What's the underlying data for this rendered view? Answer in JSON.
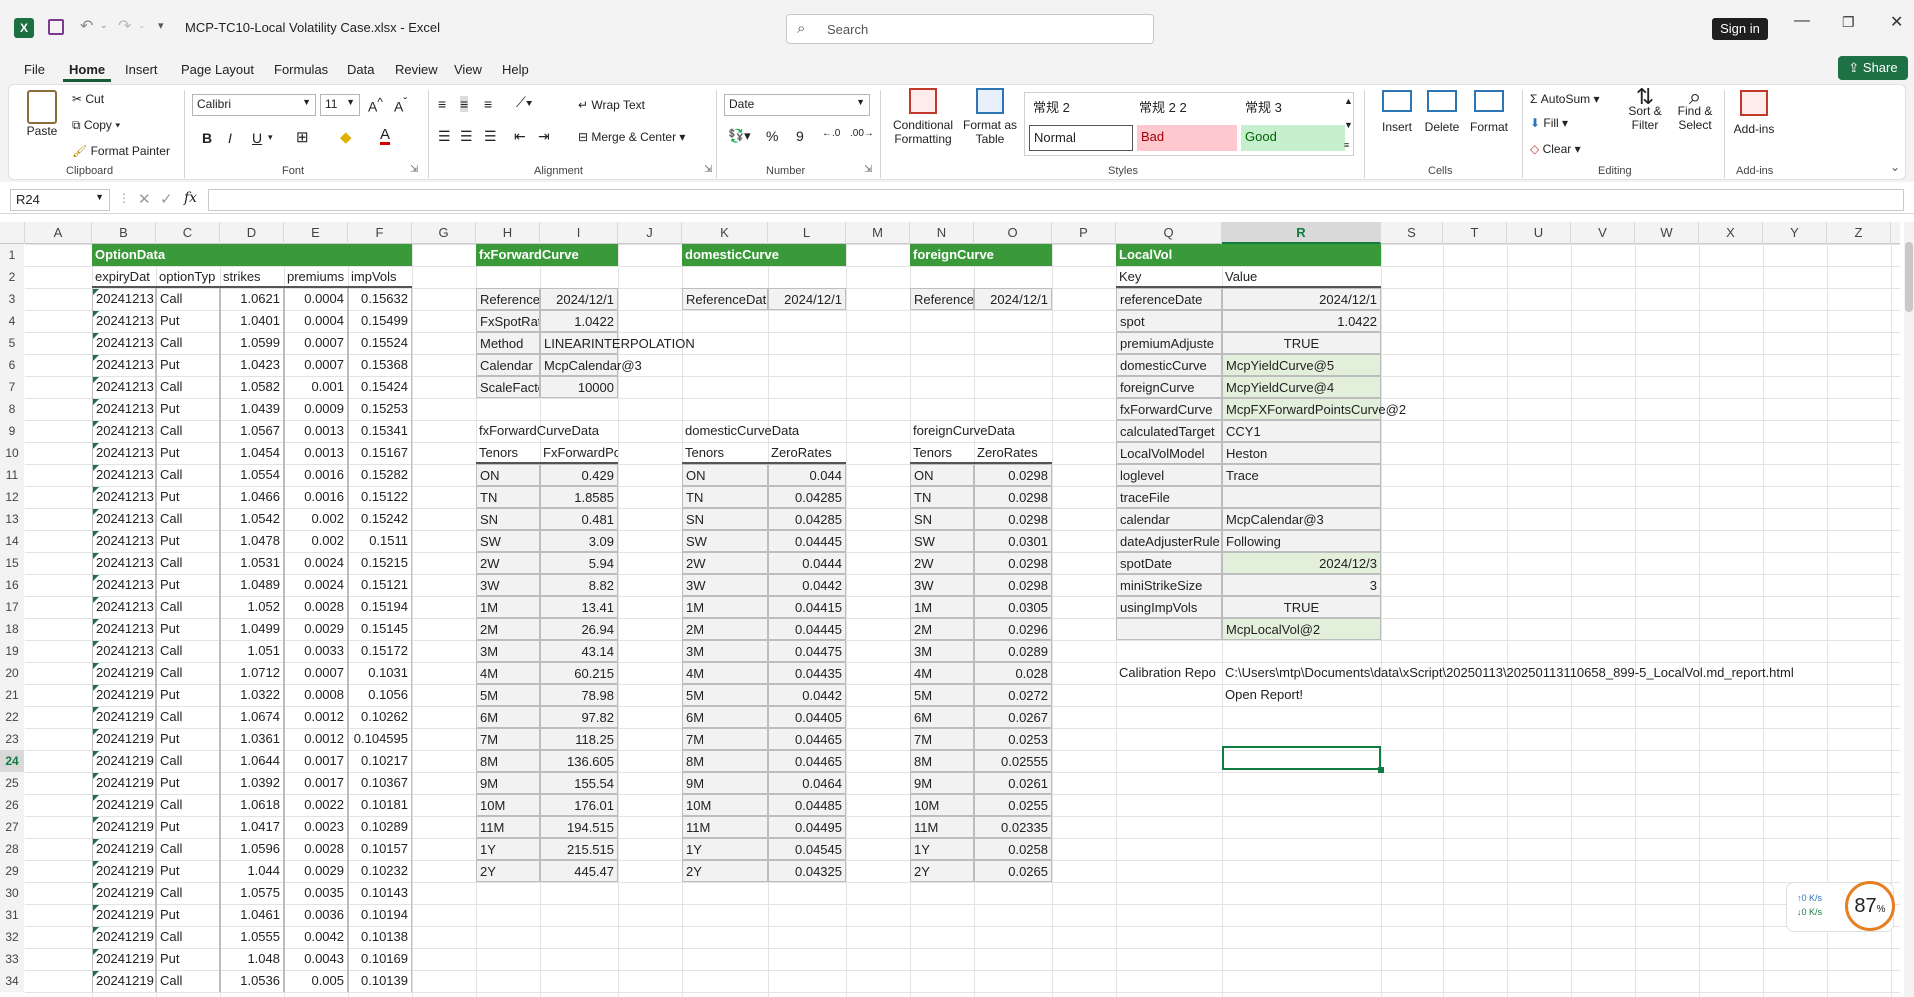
{
  "window": {
    "title": "MCP-TC10-Local Volatility Case.xlsx  -  Excel",
    "search_placeholder": "Search",
    "sign_in": "Sign in",
    "share": "Share",
    "accent": "#185c37"
  },
  "menu": {
    "tabs": [
      "File",
      "Home",
      "Insert",
      "Page Layout",
      "Formulas",
      "Data",
      "Review",
      "View",
      "Help"
    ]
  },
  "ribbon": {
    "clipboard": {
      "paste": "Paste",
      "cut": "Cut",
      "copy": "Copy",
      "format_painter": "Format Painter",
      "label": "Clipboard"
    },
    "font": {
      "name": "Calibri",
      "size": "11",
      "label": "Font"
    },
    "alignment": {
      "wrap": "Wrap Text",
      "merge": "Merge & Center",
      "label": "Alignment"
    },
    "number": {
      "format": "Date",
      "label": "Number"
    },
    "styles": {
      "conditional": "Conditional Formatting",
      "format_table": "Format as Table",
      "style1": "常规 2",
      "style2": "常规 2 2",
      "style3": "常规 3",
      "normal": "Normal",
      "bad": "Bad",
      "good": "Good",
      "label": "Styles"
    },
    "cells": {
      "insert": "Insert",
      "delete": "Delete",
      "format": "Format",
      "label": "Cells"
    },
    "editing": {
      "autosum": "AutoSum",
      "fill": "Fill",
      "clear": "Clear",
      "sort": "Sort & Filter",
      "find": "Find & Select",
      "label": "Editing"
    },
    "addins": {
      "addins": "Add-ins",
      "label": "Add-ins"
    }
  },
  "formula_bar": {
    "name_box": "R24",
    "fx": "fx",
    "value": ""
  },
  "columns": [
    "A",
    "B",
    "C",
    "D",
    "E",
    "F",
    "G",
    "H",
    "I",
    "J",
    "K",
    "L",
    "M",
    "N",
    "O",
    "P",
    "Q",
    "R",
    "S",
    "T",
    "U",
    "V",
    "W",
    "X",
    "Y",
    "Z"
  ],
  "option_data": {
    "title": "OptionData",
    "headers": [
      "expiryDat",
      "optionTyp",
      "strikes",
      "premiums",
      "impVols"
    ],
    "rows": [
      [
        "20241213",
        "Call",
        "1.0621",
        "0.0004",
        "0.15632"
      ],
      [
        "20241213",
        "Put",
        "1.0401",
        "0.0004",
        "0.15499"
      ],
      [
        "20241213",
        "Call",
        "1.0599",
        "0.0007",
        "0.15524"
      ],
      [
        "20241213",
        "Put",
        "1.0423",
        "0.0007",
        "0.15368"
      ],
      [
        "20241213",
        "Call",
        "1.0582",
        "0.001",
        "0.15424"
      ],
      [
        "20241213",
        "Put",
        "1.0439",
        "0.0009",
        "0.15253"
      ],
      [
        "20241213",
        "Call",
        "1.0567",
        "0.0013",
        "0.15341"
      ],
      [
        "20241213",
        "Put",
        "1.0454",
        "0.0013",
        "0.15167"
      ],
      [
        "20241213",
        "Call",
        "1.0554",
        "0.0016",
        "0.15282"
      ],
      [
        "20241213",
        "Put",
        "1.0466",
        "0.0016",
        "0.15122"
      ],
      [
        "20241213",
        "Call",
        "1.0542",
        "0.002",
        "0.15242"
      ],
      [
        "20241213",
        "Put",
        "1.0478",
        "0.002",
        "0.1511"
      ],
      [
        "20241213",
        "Call",
        "1.0531",
        "0.0024",
        "0.15215"
      ],
      [
        "20241213",
        "Put",
        "1.0489",
        "0.0024",
        "0.15121"
      ],
      [
        "20241213",
        "Call",
        "1.052",
        "0.0028",
        "0.15194"
      ],
      [
        "20241213",
        "Put",
        "1.0499",
        "0.0029",
        "0.15145"
      ],
      [
        "20241213",
        "Call",
        "1.051",
        "0.0033",
        "0.15172"
      ],
      [
        "20241219",
        "Call",
        "1.0712",
        "0.0007",
        "0.1031"
      ],
      [
        "20241219",
        "Put",
        "1.0322",
        "0.0008",
        "0.1056"
      ],
      [
        "20241219",
        "Call",
        "1.0674",
        "0.0012",
        "0.10262"
      ],
      [
        "20241219",
        "Put",
        "1.0361",
        "0.0012",
        "0.104595"
      ],
      [
        "20241219",
        "Call",
        "1.0644",
        "0.0017",
        "0.10217"
      ],
      [
        "20241219",
        "Put",
        "1.0392",
        "0.0017",
        "0.10367"
      ],
      [
        "20241219",
        "Call",
        "1.0618",
        "0.0022",
        "0.10181"
      ],
      [
        "20241219",
        "Put",
        "1.0417",
        "0.0023",
        "0.10289"
      ],
      [
        "20241219",
        "Call",
        "1.0596",
        "0.0028",
        "0.10157"
      ],
      [
        "20241219",
        "Put",
        "1.044",
        "0.0029",
        "0.10232"
      ],
      [
        "20241219",
        "Call",
        "1.0575",
        "0.0035",
        "0.10143"
      ],
      [
        "20241219",
        "Put",
        "1.0461",
        "0.0036",
        "0.10194"
      ],
      [
        "20241219",
        "Call",
        "1.0555",
        "0.0042",
        "0.10138"
      ],
      [
        "20241219",
        "Put",
        "1.048",
        "0.0043",
        "0.10169"
      ],
      [
        "20241219",
        "Call",
        "1.0536",
        "0.005",
        "0.10139"
      ]
    ]
  },
  "fx_forward": {
    "title": "fxForwardCurve",
    "params": [
      [
        "Reference",
        "2024/12/1"
      ],
      [
        "FxSpotRat",
        "1.0422"
      ],
      [
        "Method",
        "LINEARINTERPOLATION"
      ],
      [
        "Calendar",
        "McpCalendar@3"
      ],
      [
        "ScaleFacto",
        "10000"
      ]
    ],
    "data_title": "fxForwardCurveData",
    "headers": [
      "Tenors",
      "FxForwardPoints"
    ],
    "rows": [
      [
        "ON",
        "0.429"
      ],
      [
        "TN",
        "1.8585"
      ],
      [
        "SN",
        "0.481"
      ],
      [
        "SW",
        "3.09"
      ],
      [
        "2W",
        "5.94"
      ],
      [
        "3W",
        "8.82"
      ],
      [
        "1M",
        "13.41"
      ],
      [
        "2M",
        "26.94"
      ],
      [
        "3M",
        "43.14"
      ],
      [
        "4M",
        "60.215"
      ],
      [
        "5M",
        "78.98"
      ],
      [
        "6M",
        "97.82"
      ],
      [
        "7M",
        "118.25"
      ],
      [
        "8M",
        "136.605"
      ],
      [
        "9M",
        "155.54"
      ],
      [
        "10M",
        "176.01"
      ],
      [
        "11M",
        "194.515"
      ],
      [
        "1Y",
        "215.515"
      ],
      [
        "2Y",
        "445.47"
      ]
    ]
  },
  "domestic": {
    "title": "domesticCurve",
    "ref_label": "ReferenceDat",
    "ref_value": "2024/12/1",
    "data_title": "domesticCurveData",
    "headers": [
      "Tenors",
      "ZeroRates"
    ],
    "rows": [
      [
        "ON",
        "0.044"
      ],
      [
        "TN",
        "0.04285"
      ],
      [
        "SN",
        "0.04285"
      ],
      [
        "SW",
        "0.04445"
      ],
      [
        "2W",
        "0.0444"
      ],
      [
        "3W",
        "0.0442"
      ],
      [
        "1M",
        "0.04415"
      ],
      [
        "2M",
        "0.04445"
      ],
      [
        "3M",
        "0.04475"
      ],
      [
        "4M",
        "0.04435"
      ],
      [
        "5M",
        "0.0442"
      ],
      [
        "6M",
        "0.04405"
      ],
      [
        "7M",
        "0.04465"
      ],
      [
        "8M",
        "0.04465"
      ],
      [
        "9M",
        "0.0464"
      ],
      [
        "10M",
        "0.04485"
      ],
      [
        "11M",
        "0.04495"
      ],
      [
        "1Y",
        "0.04545"
      ],
      [
        "2Y",
        "0.04325"
      ]
    ]
  },
  "foreign": {
    "title": "foreignCurve",
    "ref_label": "Reference",
    "ref_value": "2024/12/1",
    "data_title": "foreignCurveData",
    "headers": [
      "Tenors",
      "ZeroRates"
    ],
    "rows": [
      [
        "ON",
        "0.0298"
      ],
      [
        "TN",
        "0.0298"
      ],
      [
        "SN",
        "0.0298"
      ],
      [
        "SW",
        "0.0301"
      ],
      [
        "2W",
        "0.0298"
      ],
      [
        "3W",
        "0.0298"
      ],
      [
        "1M",
        "0.0305"
      ],
      [
        "2M",
        "0.0296"
      ],
      [
        "3M",
        "0.0289"
      ],
      [
        "4M",
        "0.028"
      ],
      [
        "5M",
        "0.0272"
      ],
      [
        "6M",
        "0.0267"
      ],
      [
        "7M",
        "0.0253"
      ],
      [
        "8M",
        "0.02555"
      ],
      [
        "9M",
        "0.0261"
      ],
      [
        "10M",
        "0.0255"
      ],
      [
        "11M",
        "0.02335"
      ],
      [
        "1Y",
        "0.0258"
      ],
      [
        "2Y",
        "0.0265"
      ]
    ]
  },
  "local_vol": {
    "title": "LocalVol",
    "headers": [
      "Key",
      "Value"
    ],
    "rows": [
      [
        "referenceDate",
        "2024/12/1",
        "r",
        ""
      ],
      [
        "spot",
        "1.0422",
        "r",
        ""
      ],
      [
        "premiumAdjuste",
        "TRUE",
        "c",
        ""
      ],
      [
        "domesticCurve",
        "McpYieldCurve@5",
        "l",
        "g"
      ],
      [
        "foreignCurve",
        "McpYieldCurve@4",
        "l",
        "g"
      ],
      [
        "fxForwardCurve",
        "McpFXForwardPointsCurve@2",
        "l",
        "g"
      ],
      [
        "calculatedTarget",
        "CCY1",
        "l",
        ""
      ],
      [
        "LocalVolModel",
        "Heston",
        "l",
        ""
      ],
      [
        "loglevel",
        "Trace",
        "l",
        ""
      ],
      [
        "traceFile",
        "",
        "l",
        ""
      ],
      [
        "calendar",
        "McpCalendar@3",
        "l",
        ""
      ],
      [
        "dateAdjusterRule",
        "Following",
        "l",
        ""
      ],
      [
        "spotDate",
        "2024/12/3",
        "r",
        "g"
      ],
      [
        "miniStrikeSize",
        "3",
        "r",
        ""
      ],
      [
        "usingImpVols",
        "TRUE",
        "c",
        ""
      ],
      [
        "",
        "McpLocalVol@2",
        "l",
        "g"
      ]
    ],
    "calib_label": "Calibration Repo",
    "calib_path": "C:\\Users\\mtp\\Documents\\data\\xScript\\20250113\\20250113110658_899-5_LocalVol.md_report.html",
    "open_report": "Open Report!"
  },
  "overlay": {
    "upload": "↑0  K/s",
    "download": "↓0  K/s",
    "percent": "87",
    "pct_sign": "%"
  }
}
